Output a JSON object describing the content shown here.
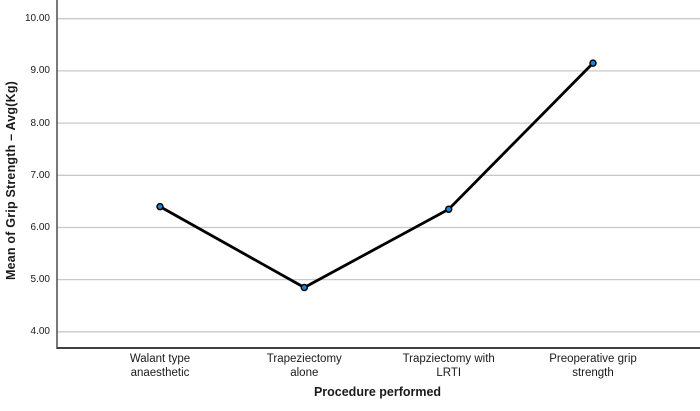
{
  "chart_data": {
    "type": "line",
    "title": "",
    "xlabel": "Procedure performed",
    "ylabel": "Mean of Grip Strength – Avg(Kg)",
    "categories": [
      "Walant type anaesthetic",
      "Trapeziectomy alone",
      "Trapziectomy with LRTI",
      "Preoperative grip strength"
    ],
    "values": [
      6.4,
      4.85,
      6.35,
      9.15
    ],
    "ytick_values": [
      4,
      5,
      6,
      7,
      8,
      9,
      10
    ],
    "ytick_labels": [
      "4.00",
      "5.00",
      "6.00",
      "7.00",
      "8.00",
      "9.00",
      "10.00"
    ],
    "ylim": [
      3.69,
      10.34
    ],
    "grid": "horizontal",
    "legend": "none",
    "marker": "circle",
    "colors": {
      "line": "#000000",
      "marker_fill": "#1787d8",
      "marker_edge": "#000000",
      "gridline": "#c9c9c9",
      "axis": "#404040",
      "text": "#1a1a1a",
      "background": "#ffffff"
    }
  }
}
